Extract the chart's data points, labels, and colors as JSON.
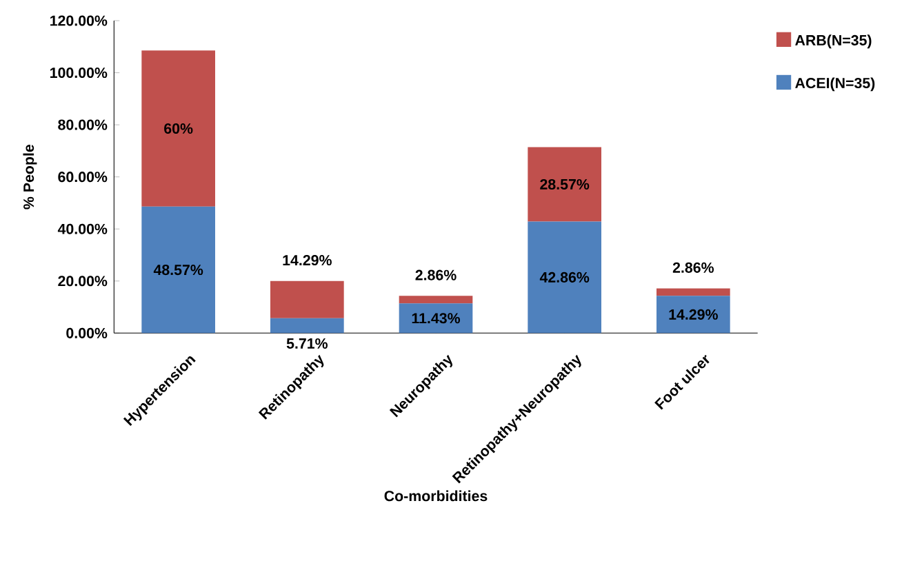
{
  "chart_data": {
    "type": "bar",
    "stacked": true,
    "xlabel": "Co-morbidities",
    "ylabel": "% People",
    "categories": [
      "Hypertension",
      "Retinopathy",
      "Neuropathy",
      "Retinopathy+Neuropathy",
      "Foot ulcer"
    ],
    "series": [
      {
        "name": "ACEI(N=35)",
        "color": "#4f81bd",
        "values": [
          48.57,
          5.71,
          11.43,
          42.86,
          14.29
        ],
        "value_labels": [
          "48.57%",
          "5.71%",
          "11.43%",
          "42.86%",
          "14.29%"
        ]
      },
      {
        "name": "ARB(N=35)",
        "color": "#c0504d",
        "values": [
          60,
          14.29,
          2.86,
          28.57,
          2.86
        ],
        "value_labels": [
          "60%",
          "14.29%",
          "2.86%",
          "28.57%",
          "2.86%"
        ]
      }
    ],
    "ylim": [
      0,
      120
    ],
    "yticks": [
      {
        "value": 0,
        "label": "0.00%"
      },
      {
        "value": 20,
        "label": "20.00%"
      },
      {
        "value": 40,
        "label": "40.00%"
      },
      {
        "value": 60,
        "label": "60.00%"
      },
      {
        "value": 80,
        "label": "80.00%"
      },
      {
        "value": 100,
        "label": "100.00%"
      },
      {
        "value": 120,
        "label": "120.00%"
      }
    ],
    "legend": "top right",
    "grid": false
  }
}
